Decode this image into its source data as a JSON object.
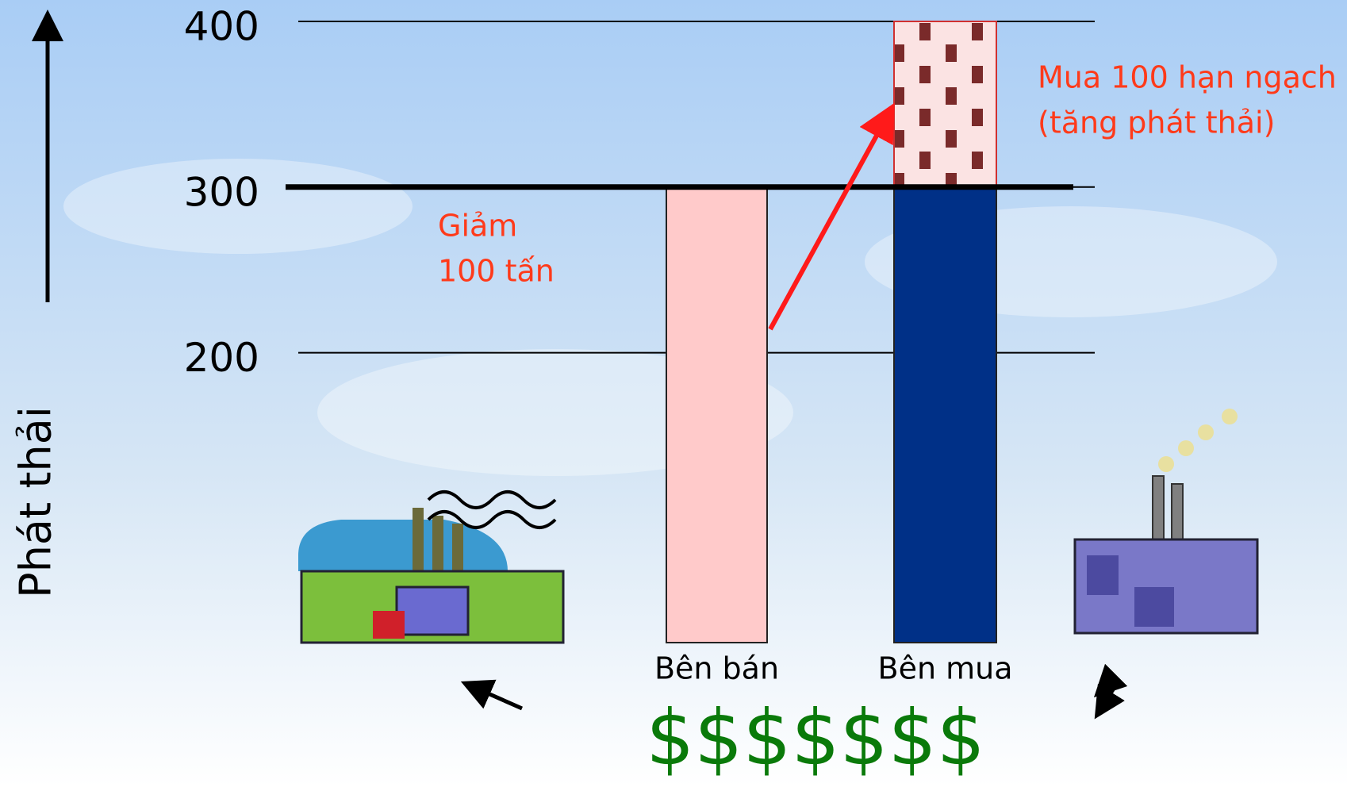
{
  "chart_data": {
    "type": "bar",
    "y_label": "Phát thải",
    "categories": [
      "Bên bán",
      "Bên mua"
    ],
    "values": [
      300,
      300
    ],
    "colors": [
      "#ffcaca",
      "#003087"
    ],
    "added_values": [
      null,
      100
    ],
    "added_color": "#7a2a2a",
    "cap_line": 300,
    "ylim": [
      25,
      400
    ],
    "yticks": [
      200,
      300,
      400
    ],
    "grid": true,
    "annotations": {
      "seller": [
        "Giảm",
        "100 tấn"
      ],
      "buyer": [
        "Mua 100 hạn ngạch",
        "(tăng phát thải)"
      ],
      "money": "$$$$$$$"
    }
  }
}
